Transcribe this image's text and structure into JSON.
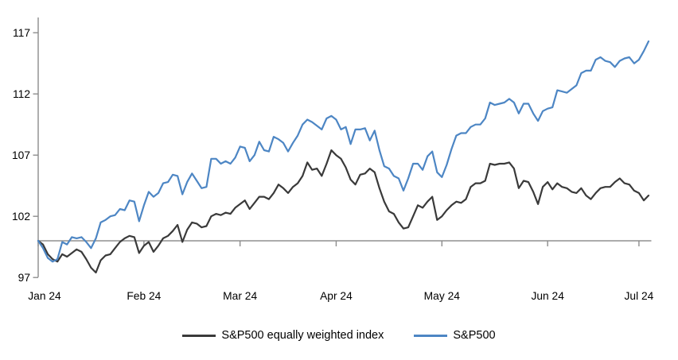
{
  "chart": {
    "legend": [
      {
        "label": "S&P500 equally weighted index",
        "color": "#3a3a3a"
      },
      {
        "label": "S&P500",
        "color": "#4d86c4"
      }
    ]
  },
  "chart_data": {
    "type": "line",
    "title": "",
    "xlabel": "",
    "ylabel": "",
    "x_unit": "trading days Jan 2024 - early Jul 2024, values indexed to 100 at Jan 1 2024",
    "x_tick_labels": [
      "Jan 24",
      "Feb 24",
      "Mar 24",
      "Apr 24",
      "May 24",
      "Jun 24",
      "Jul 24"
    ],
    "x_tick_day_index": [
      0,
      22,
      42,
      62,
      84,
      106,
      125
    ],
    "y_ticks": [
      97,
      102,
      107,
      112,
      117
    ],
    "ylim": [
      97,
      118.3
    ],
    "baseline_value": 100,
    "grid": "none",
    "axis_color": "#8c8c8c",
    "baseline_color": "#a0a0a0",
    "legend_position": "bottom-center",
    "series": [
      {
        "name": "S&P500 equally weighted index",
        "color": "#3a3a3a",
        "values": [
          100,
          99.7,
          98.9,
          98.5,
          98.3,
          98.9,
          98.7,
          99,
          99.3,
          99.1,
          98.5,
          97.8,
          97.4,
          98.4,
          98.8,
          98.9,
          99.4,
          99.9,
          100.2,
          100.4,
          100.3,
          99,
          99.6,
          99.9,
          99.1,
          99.6,
          100.2,
          100.4,
          100.8,
          101.3,
          99.9,
          100.9,
          101.5,
          101.4,
          101.1,
          101.2,
          102,
          102.2,
          102.1,
          102.3,
          102.2,
          102.7,
          103,
          103.3,
          102.6,
          103.1,
          103.6,
          103.6,
          103.4,
          103.9,
          104.6,
          104.3,
          103.9,
          104.4,
          104.7,
          105.3,
          106.4,
          105.8,
          105.9,
          105.3,
          106.3,
          107.4,
          107,
          106.7,
          106,
          105,
          104.6,
          105.4,
          105.5,
          105.9,
          105.6,
          104.3,
          103.2,
          102.4,
          102.2,
          101.5,
          101,
          101.1,
          102,
          102.9,
          102.7,
          103.2,
          103.6,
          101.7,
          102,
          102.5,
          102.9,
          103.2,
          103.1,
          103.4,
          104.4,
          104.7,
          104.7,
          104.9,
          106.3,
          106.2,
          106.3,
          106.3,
          106.4,
          105.9,
          104.3,
          104.9,
          104.8,
          104,
          103,
          104.4,
          104.8,
          104.2,
          104.7,
          104.4,
          104.3,
          104,
          103.9,
          104.3,
          103.7,
          103.4,
          103.9,
          104.3,
          104.4,
          104.4,
          104.8,
          105.1,
          104.7,
          104.6,
          104.1,
          103.9,
          103.3,
          103.7
        ]
      },
      {
        "name": "S&P500",
        "color": "#4d86c4",
        "values": [
          100,
          99.4,
          98.6,
          98.3,
          98.5,
          99.9,
          99.7,
          100.3,
          100.2,
          100.3,
          99.9,
          99.4,
          100.2,
          101.5,
          101.7,
          102,
          102.1,
          102.6,
          102.5,
          103.3,
          103.2,
          101.6,
          102.9,
          104,
          103.6,
          103.9,
          104.7,
          104.8,
          105.4,
          105.3,
          103.8,
          104.8,
          105.5,
          104.9,
          104.3,
          104.4,
          106.7,
          106.7,
          106.3,
          106.5,
          106.3,
          106.8,
          107.7,
          107.6,
          106.5,
          107,
          108.1,
          107.4,
          107.3,
          108.5,
          108.3,
          108,
          107.3,
          108,
          108.6,
          109.5,
          109.9,
          109.7,
          109.4,
          109.1,
          110,
          110.2,
          109.9,
          109.1,
          109.3,
          107.9,
          109.1,
          109.1,
          109.2,
          108.2,
          109,
          107.4,
          106.1,
          105.9,
          105.3,
          105.1,
          104.1,
          105.1,
          106.3,
          106.3,
          105.8,
          106.9,
          107.3,
          105.6,
          105.2,
          106.2,
          107.5,
          108.6,
          108.8,
          108.8,
          109.3,
          109.5,
          109.5,
          110,
          111.3,
          111.1,
          111.2,
          111.3,
          111.6,
          111.3,
          110.4,
          111.2,
          111.2,
          110.4,
          109.8,
          110.6,
          110.8,
          110.9,
          112.3,
          112.2,
          112.1,
          112.4,
          112.7,
          113.7,
          113.9,
          113.9,
          114.8,
          115,
          114.7,
          114.6,
          114.2,
          114.7,
          114.9,
          115,
          114.5,
          114.8,
          115.5,
          116.3
        ]
      }
    ]
  }
}
